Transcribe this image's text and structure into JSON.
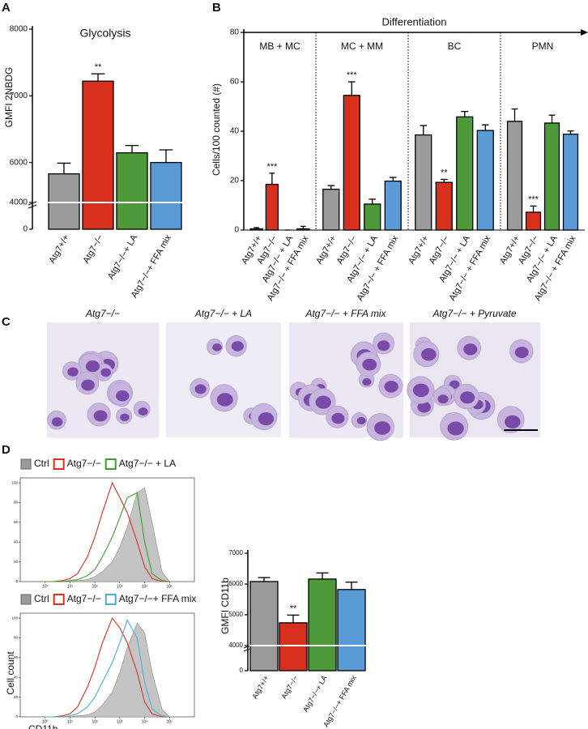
{
  "panels": [
    "A",
    "B",
    "C",
    "D"
  ],
  "chart_data": [
    {
      "type": "bar",
      "title": "Glycolysis",
      "ylabel": "GMFI 2NBDG",
      "categories": [
        "Atg7+/+",
        "Atg7−/−",
        "Atg7−/−+ LA",
        "Atg7−/−+ FFA mix"
      ],
      "values": [
        5830,
        7220,
        6145,
        6000
      ],
      "errors": [
        160,
        110,
        110,
        190
      ],
      "significance": [
        null,
        "**",
        null,
        null
      ],
      "colors": [
        "#9b9b9b",
        "#d7301f",
        "#4e9a3b",
        "#5b9bd5"
      ],
      "ylim": [
        0,
        8000
      ],
      "yticks": [
        0,
        4000,
        6000,
        7000,
        8000
      ],
      "ybreak": [
        4000,
        5400
      ]
    },
    {
      "type": "grouped_bar",
      "ylabel": "Cells/100 counted (#)",
      "arrow_label": "Differentiation",
      "colors": [
        "#9b9b9b",
        "#d7301f",
        "#4e9a3b",
        "#5b9bd5"
      ],
      "ylim": [
        0,
        80
      ],
      "yticks": [
        0,
        20,
        40,
        60,
        80
      ],
      "groups": [
        {
          "name": "MB + MC",
          "categories": [
            "Atg7+/+",
            "Atg7−/−",
            "Atg7−/− + LA",
            "Atg7−/− + FFA mix"
          ],
          "values": [
            0.5,
            18.5,
            0,
            0.5
          ],
          "errors": [
            0.5,
            4.5,
            0,
            1
          ],
          "significance": [
            null,
            "***",
            null,
            null
          ]
        },
        {
          "name": "MC + MM",
          "categories": [
            "Atg7+/+",
            "Atg7−/−",
            "Atg7−/− + LA",
            "Atg7−/− + FFA mix"
          ],
          "values": [
            16.5,
            54.5,
            10.5,
            19.8
          ],
          "errors": [
            1.5,
            5.5,
            2,
            1.5
          ],
          "significance": [
            null,
            "***",
            null,
            null
          ]
        },
        {
          "name": "BC",
          "categories": [
            "Atg7+/+",
            "Atg7−/−",
            "Atg7−/− + LA",
            "Atg7−/− + FFA mix"
          ],
          "values": [
            38.5,
            19.3,
            45.8,
            40.3
          ],
          "errors": [
            3.8,
            1.2,
            2.2,
            2.3
          ],
          "significance": [
            null,
            "**",
            null,
            null
          ]
        },
        {
          "name": "PMN",
          "categories": [
            "Atg7+/+",
            "Atg7−/−",
            "Atg7−/− + LA",
            "Atg7−/− + FFA mix"
          ],
          "values": [
            44,
            7.2,
            43.3,
            38.8
          ],
          "errors": [
            5,
            2.5,
            3.2,
            1.3
          ],
          "significance": [
            null,
            "***",
            null,
            null
          ]
        }
      ]
    },
    {
      "type": "line",
      "xscale": "log",
      "x": [
        1,
        2,
        5,
        10,
        20,
        50,
        100,
        200,
        500,
        1000,
        2000,
        5000,
        10000,
        20000,
        50000,
        100000
      ],
      "xlim": [
        0.1,
        1000000
      ],
      "xticks": [
        {
          "value": 1,
          "label": "10⁰"
        },
        {
          "value": 10,
          "label": "10¹"
        },
        {
          "value": 100,
          "label": "10²"
        },
        {
          "value": 1000,
          "label": "10³"
        },
        {
          "value": 10000,
          "label": "10⁴"
        },
        {
          "value": 100000,
          "label": "10⁵"
        }
      ],
      "ylim": [
        0,
        105
      ],
      "yticks": [
        0,
        20,
        40,
        60,
        80,
        100
      ],
      "series": [
        {
          "name": "Ctrl",
          "color": "#9b9b9b",
          "fill": true,
          "values": [
            0,
            0,
            0,
            0,
            1,
            2,
            5,
            10,
            20,
            35,
            55,
            90,
            95,
            60,
            10,
            0
          ]
        },
        {
          "name": "Atg7−/−",
          "color": "#d7301f",
          "fill": false,
          "values": [
            0,
            0,
            1,
            3,
            8,
            25,
            45,
            70,
            100,
            85,
            70,
            40,
            15,
            3,
            0,
            0
          ]
        },
        {
          "name": "Atg7−/− + LA",
          "color": "#3f9b2f",
          "fill": false,
          "values": [
            0,
            0,
            0,
            1,
            2,
            6,
            12,
            25,
            45,
            65,
            85,
            90,
            40,
            8,
            1,
            0
          ]
        }
      ]
    },
    {
      "type": "line",
      "xscale": "log",
      "xlabel": "CD11b",
      "ylabel": "Cell count",
      "x": [
        1,
        2,
        5,
        10,
        20,
        50,
        100,
        200,
        500,
        1000,
        2000,
        5000,
        10000,
        20000,
        50000,
        100000
      ],
      "xlim": [
        0.1,
        1000000
      ],
      "xticks": [
        {
          "value": 1,
          "label": "10⁰"
        },
        {
          "value": 10,
          "label": "10¹"
        },
        {
          "value": 100,
          "label": "10²"
        },
        {
          "value": 1000,
          "label": "10³"
        },
        {
          "value": 10000,
          "label": "10⁴"
        },
        {
          "value": 100000,
          "label": "10⁵"
        }
      ],
      "ylim": [
        0,
        105
      ],
      "yticks": [
        0,
        20,
        40,
        60,
        80,
        100
      ],
      "series": [
        {
          "name": "Ctrl",
          "color": "#9b9b9b",
          "fill": true,
          "values": [
            0,
            0,
            0,
            0,
            1,
            2,
            5,
            12,
            25,
            45,
            70,
            95,
            85,
            45,
            8,
            0
          ]
        },
        {
          "name": "Atg7−/−",
          "color": "#d7301f",
          "fill": false,
          "values": [
            0,
            0,
            1,
            3,
            10,
            30,
            50,
            75,
            100,
            90,
            75,
            45,
            15,
            3,
            0,
            0
          ]
        },
        {
          "name": "Atg7−/−+ FFA mix",
          "color": "#4ab0d0",
          "fill": false,
          "values": [
            0,
            0,
            0,
            1,
            3,
            10,
            20,
            35,
            55,
            75,
            98,
            80,
            35,
            8,
            1,
            0
          ]
        }
      ]
    },
    {
      "type": "bar",
      "ylabel": "GMFI CD11b",
      "categories": [
        "Atg7+/+",
        "Atg7−/−",
        "Atg7−/−+ LA",
        "Atg7−/−+ FFA mix"
      ],
      "values": [
        6080,
        4740,
        6160,
        5820
      ],
      "errors": [
        130,
        250,
        200,
        240
      ],
      "significance": [
        null,
        "**",
        null,
        null
      ],
      "colors": [
        "#9b9b9b",
        "#d7301f",
        "#4e9a3b",
        "#5b9bd5"
      ],
      "ylim": [
        0,
        7000
      ],
      "yticks": [
        0,
        4000,
        5000,
        6000,
        7000
      ],
      "ybreak": [
        4000,
        4000
      ]
    }
  ],
  "images": {
    "captions": [
      "Atg7−/−",
      "Atg7−/− + LA",
      "Atg7−/− + FFA mix",
      "Atg7−/− + Pyruvate"
    ]
  }
}
